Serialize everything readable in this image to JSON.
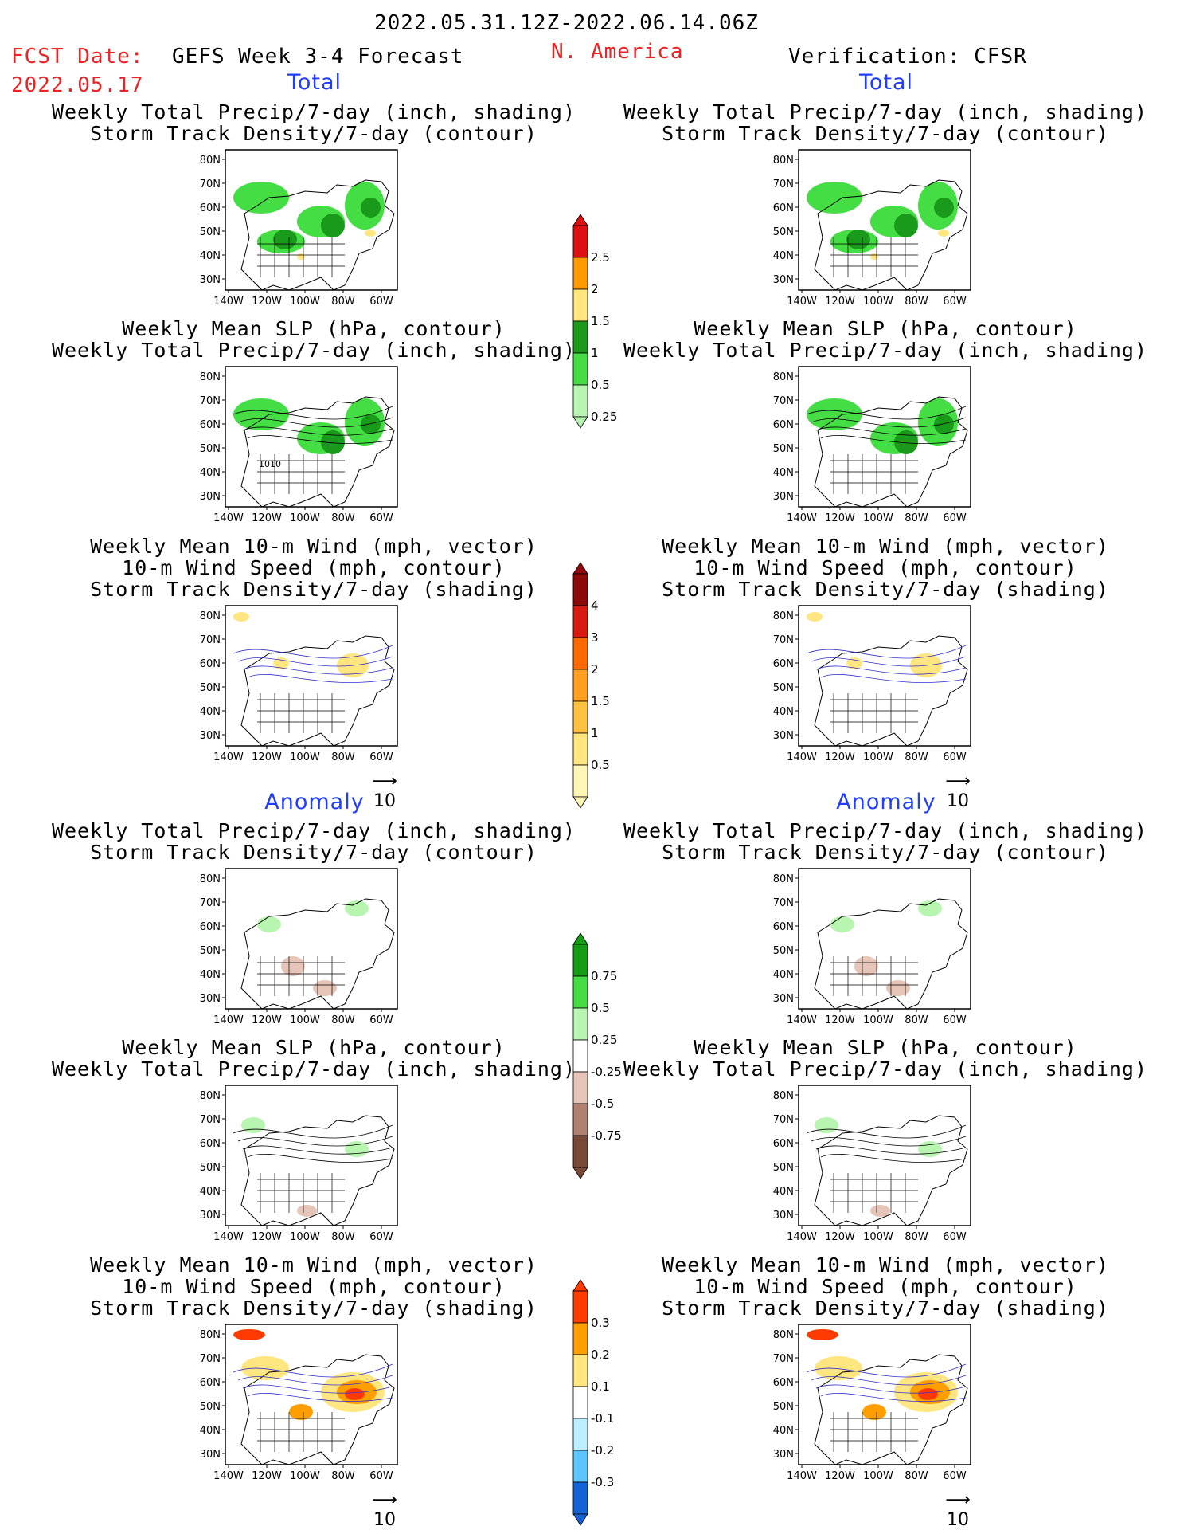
{
  "header": {
    "date_range": "2022.05.31.12Z-2022.06.14.06Z",
    "region": "N. America",
    "fcst_label": "FCST Date:",
    "fcst_date": "2022.05.17",
    "forecast_title": "GEFS Week 3-4 Forecast",
    "verification": "Verification: CFSR"
  },
  "sections": {
    "total": "Total",
    "anomaly": "Anomaly"
  },
  "titles": {
    "precip": [
      "Weekly Total Precip/7-day (inch, shading)",
      "Storm Track Density/7-day (contour)"
    ],
    "slp": [
      "Weekly Mean SLP (hPa, contour)",
      "Weekly Total Precip/7-day (inch, shading)"
    ],
    "wind": [
      "Weekly Mean 10-m Wind (mph, vector)",
      "10-m Wind Speed (mph, contour)",
      "Storm Track Density/7-day (shading)"
    ]
  },
  "axes": {
    "lat_labels": [
      "80N",
      "70N",
      "60N",
      "50N",
      "40N",
      "30N"
    ],
    "lon_labels": [
      "140W",
      "120W",
      "100W",
      "80W",
      "60W"
    ]
  },
  "map_labels": {
    "slp_contour": "1010"
  },
  "vector_ref": "10",
  "colorbars": {
    "precip_total": {
      "labels": [
        "2.5",
        "2",
        "1.5",
        "1",
        "0.5",
        "0.25"
      ],
      "colors": [
        "#dd1111",
        "#ff9900",
        "#ffe680",
        "#1a9a1a",
        "#44dd44",
        "#b8f5b0"
      ]
    },
    "storm_total": {
      "labels": [
        "4",
        "3",
        "2",
        "1.5",
        "1",
        "0.5"
      ],
      "colors": [
        "#8c0a0a",
        "#d81b0f",
        "#ff6a00",
        "#ff9e1f",
        "#ffc240",
        "#ffe680",
        "#fff6b8"
      ]
    },
    "precip_anom": {
      "labels": [
        "0.75",
        "0.5",
        "0.25",
        "-0.25",
        "-0.5",
        "-0.75"
      ],
      "colors": [
        "#149c14",
        "#44dd44",
        "#b8f5b0",
        "#ffffff",
        "#e6c4b8",
        "#b08070",
        "#7a4a38"
      ]
    },
    "storm_anom": {
      "labels": [
        "0.3",
        "0.2",
        "0.1",
        "-0.1",
        "-0.2",
        "-0.3"
      ],
      "colors": [
        "#ff3b00",
        "#ff9e00",
        "#ffe680",
        "#ffffff",
        "#bdeeff",
        "#5cc4ff",
        "#1463d6"
      ]
    }
  }
}
